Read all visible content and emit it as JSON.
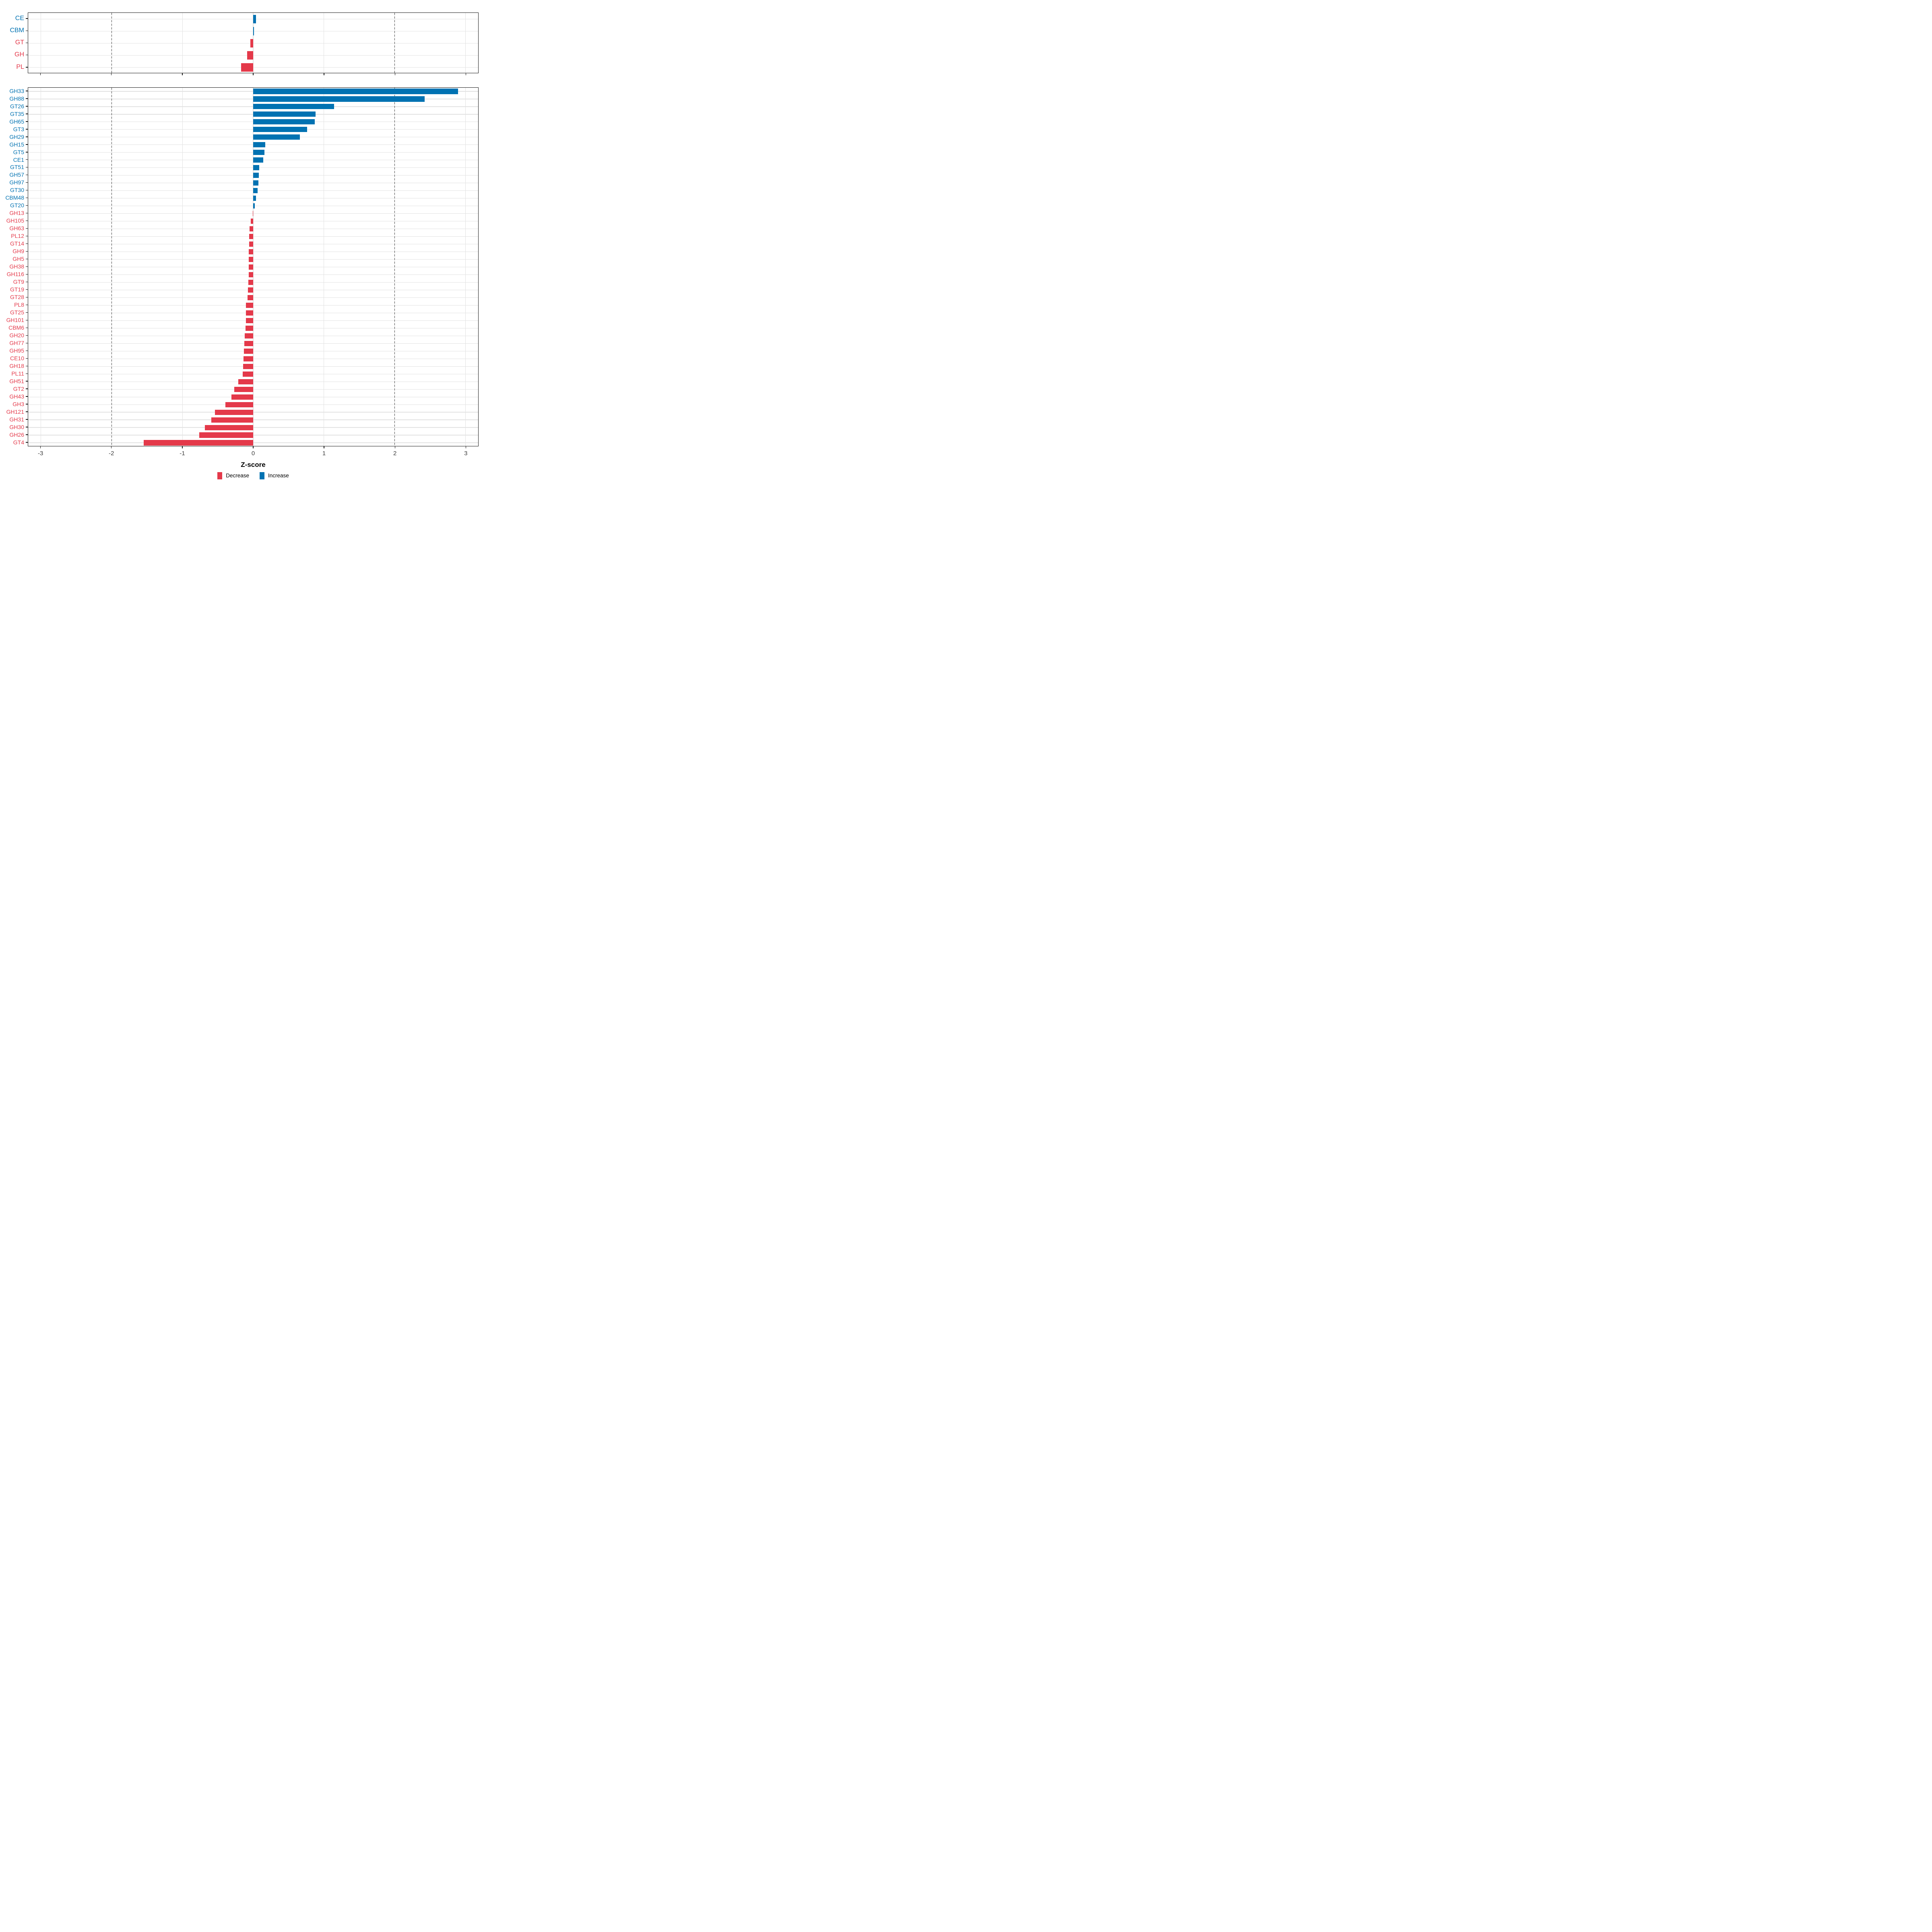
{
  "chart_data": [
    {
      "type": "bar",
      "orientation": "horizontal",
      "panel": "summary",
      "title": "",
      "categories": [
        "CE",
        "CBM",
        "GT",
        "GH",
        "PL"
      ],
      "values": [
        0.04,
        0.014,
        -0.039,
        -0.084,
        -0.169
      ],
      "xlim": [
        -3.18,
        3.18
      ],
      "grid": true
    },
    {
      "type": "bar",
      "orientation": "horizontal",
      "panel": "families",
      "title": "",
      "categories": [
        "GH33",
        "GH88",
        "GT26",
        "GT35",
        "GH65",
        "GT3",
        "GH29",
        "GH15",
        "GT5",
        "CE1",
        "GT51",
        "GH57",
        "GH97",
        "GT30",
        "CBM48",
        "GT20",
        "GH13",
        "GH105",
        "GH63",
        "PL12",
        "GT14",
        "GH9",
        "GH5",
        "GH38",
        "GH116",
        "GT9",
        "GT19",
        "GT28",
        "PL8",
        "GT25",
        "GH101",
        "CBM6",
        "GH20",
        "GH77",
        "GH95",
        "CE10",
        "GH18",
        "PL11",
        "GH51",
        "GT2",
        "GH43",
        "GH3",
        "GH121",
        "GH31",
        "GH30",
        "GH26",
        "GT4"
      ],
      "values": [
        2.89,
        2.42,
        1.14,
        0.88,
        0.87,
        0.76,
        0.66,
        0.17,
        0.16,
        0.14,
        0.085,
        0.078,
        0.071,
        0.062,
        0.04,
        0.023,
        -0.004,
        -0.036,
        -0.049,
        -0.057,
        -0.059,
        -0.06,
        -0.061,
        -0.063,
        -0.065,
        -0.069,
        -0.076,
        -0.08,
        -0.1,
        -0.103,
        -0.105,
        -0.107,
        -0.12,
        -0.124,
        -0.132,
        -0.136,
        -0.141,
        -0.147,
        -0.21,
        -0.27,
        -0.31,
        -0.39,
        -0.54,
        -0.59,
        -0.68,
        -0.76,
        -1.55
      ],
      "xlim": [
        -3.18,
        3.18
      ],
      "grid": true
    }
  ],
  "axis": {
    "xlabel": "Z-score",
    "ticks": [
      -3,
      -2,
      -1,
      0,
      1,
      2,
      3
    ],
    "tick_labels": [
      "-3",
      "-2",
      "-1",
      "0",
      "1",
      "2",
      "3"
    ],
    "dashed_lines": [
      -2,
      2
    ],
    "legend_position": "bottom"
  },
  "legend": {
    "items": [
      {
        "label": "Decrease",
        "color": "#e4394a"
      },
      {
        "label": "Increase",
        "color": "#0072b2"
      }
    ]
  },
  "colors": {
    "increase": "#0072b2",
    "decrease": "#e4394a",
    "grid": "#e2e2e2",
    "dashed": "#3b3b3b",
    "border": "#1a1a1a",
    "tick_text": "#404040"
  }
}
